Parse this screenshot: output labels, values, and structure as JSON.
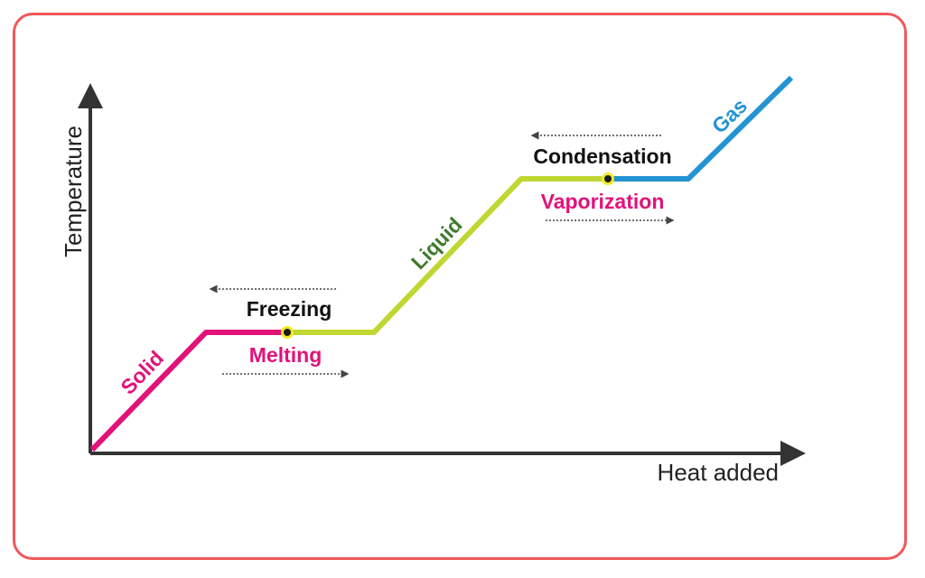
{
  "axes": {
    "x_label": "Heat added",
    "y_label": "Temperature"
  },
  "phases": {
    "solid": "Solid",
    "liquid": "Liquid",
    "gas": "Gas"
  },
  "transitions": {
    "freezing": "Freezing",
    "melting": "Melting",
    "condensation": "Condensation",
    "vaporization": "Vaporization"
  },
  "colors": {
    "solid": "#e2127a",
    "liquid": "#bfd730",
    "gas": "#2393d3",
    "liquid_label": "#3f7a2c",
    "transition_pink": "#e2127a",
    "transition_black": "#111111",
    "axis": "#333333",
    "border": "#f0585a",
    "marker_ring": "#f2ea24"
  }
}
